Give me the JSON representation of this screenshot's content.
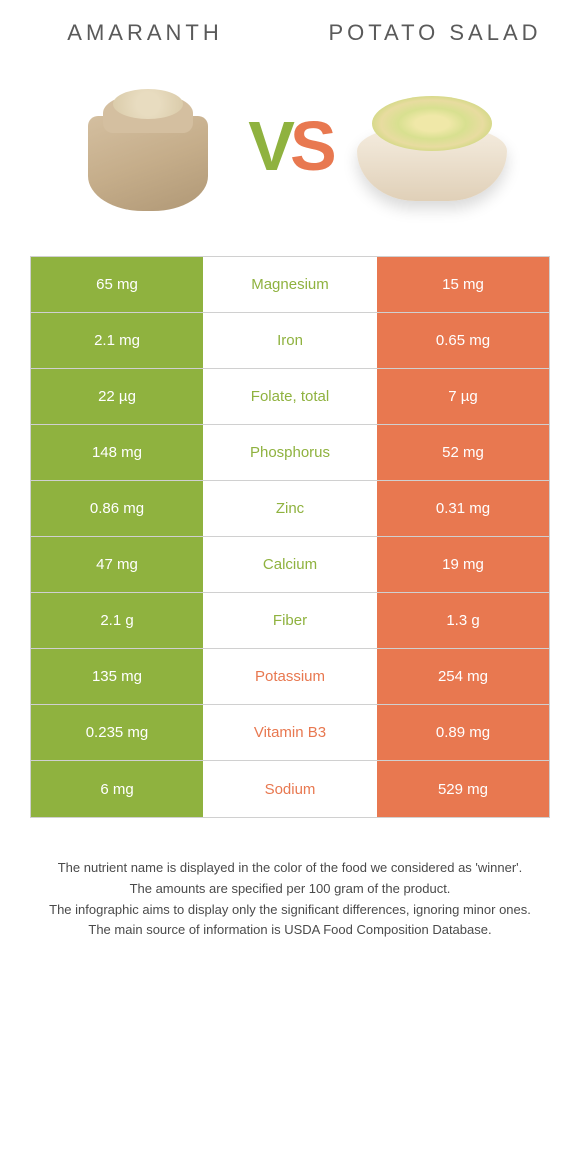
{
  "colors": {
    "left": "#8fb23f",
    "right": "#e87850",
    "border": "#d0d0d0",
    "text": "#4a4a4a"
  },
  "header": {
    "left_title": "AMARANTH",
    "right_title": "POTATO SALAD"
  },
  "vs": {
    "v": "V",
    "s": "S"
  },
  "rows": [
    {
      "left": "65 mg",
      "label": "Magnesium",
      "right": "15 mg",
      "winner": "left"
    },
    {
      "left": "2.1 mg",
      "label": "Iron",
      "right": "0.65 mg",
      "winner": "left"
    },
    {
      "left": "22 µg",
      "label": "Folate, total",
      "right": "7 µg",
      "winner": "left"
    },
    {
      "left": "148 mg",
      "label": "Phosphorus",
      "right": "52 mg",
      "winner": "left"
    },
    {
      "left": "0.86 mg",
      "label": "Zinc",
      "right": "0.31 mg",
      "winner": "left"
    },
    {
      "left": "47 mg",
      "label": "Calcium",
      "right": "19 mg",
      "winner": "left"
    },
    {
      "left": "2.1 g",
      "label": "Fiber",
      "right": "1.3 g",
      "winner": "left"
    },
    {
      "left": "135 mg",
      "label": "Potassium",
      "right": "254 mg",
      "winner": "right"
    },
    {
      "left": "0.235 mg",
      "label": "Vitamin B3",
      "right": "0.89 mg",
      "winner": "right"
    },
    {
      "left": "6 mg",
      "label": "Sodium",
      "right": "529 mg",
      "winner": "right"
    }
  ],
  "footer": {
    "line1": "The nutrient name is displayed in the color of the food we considered as 'winner'.",
    "line2": "The amounts are specified per 100 gram of the product.",
    "line3": "The infographic aims to display only the significant differences, ignoring minor ones.",
    "line4": "The main source of information is USDA Food Composition Database."
  }
}
